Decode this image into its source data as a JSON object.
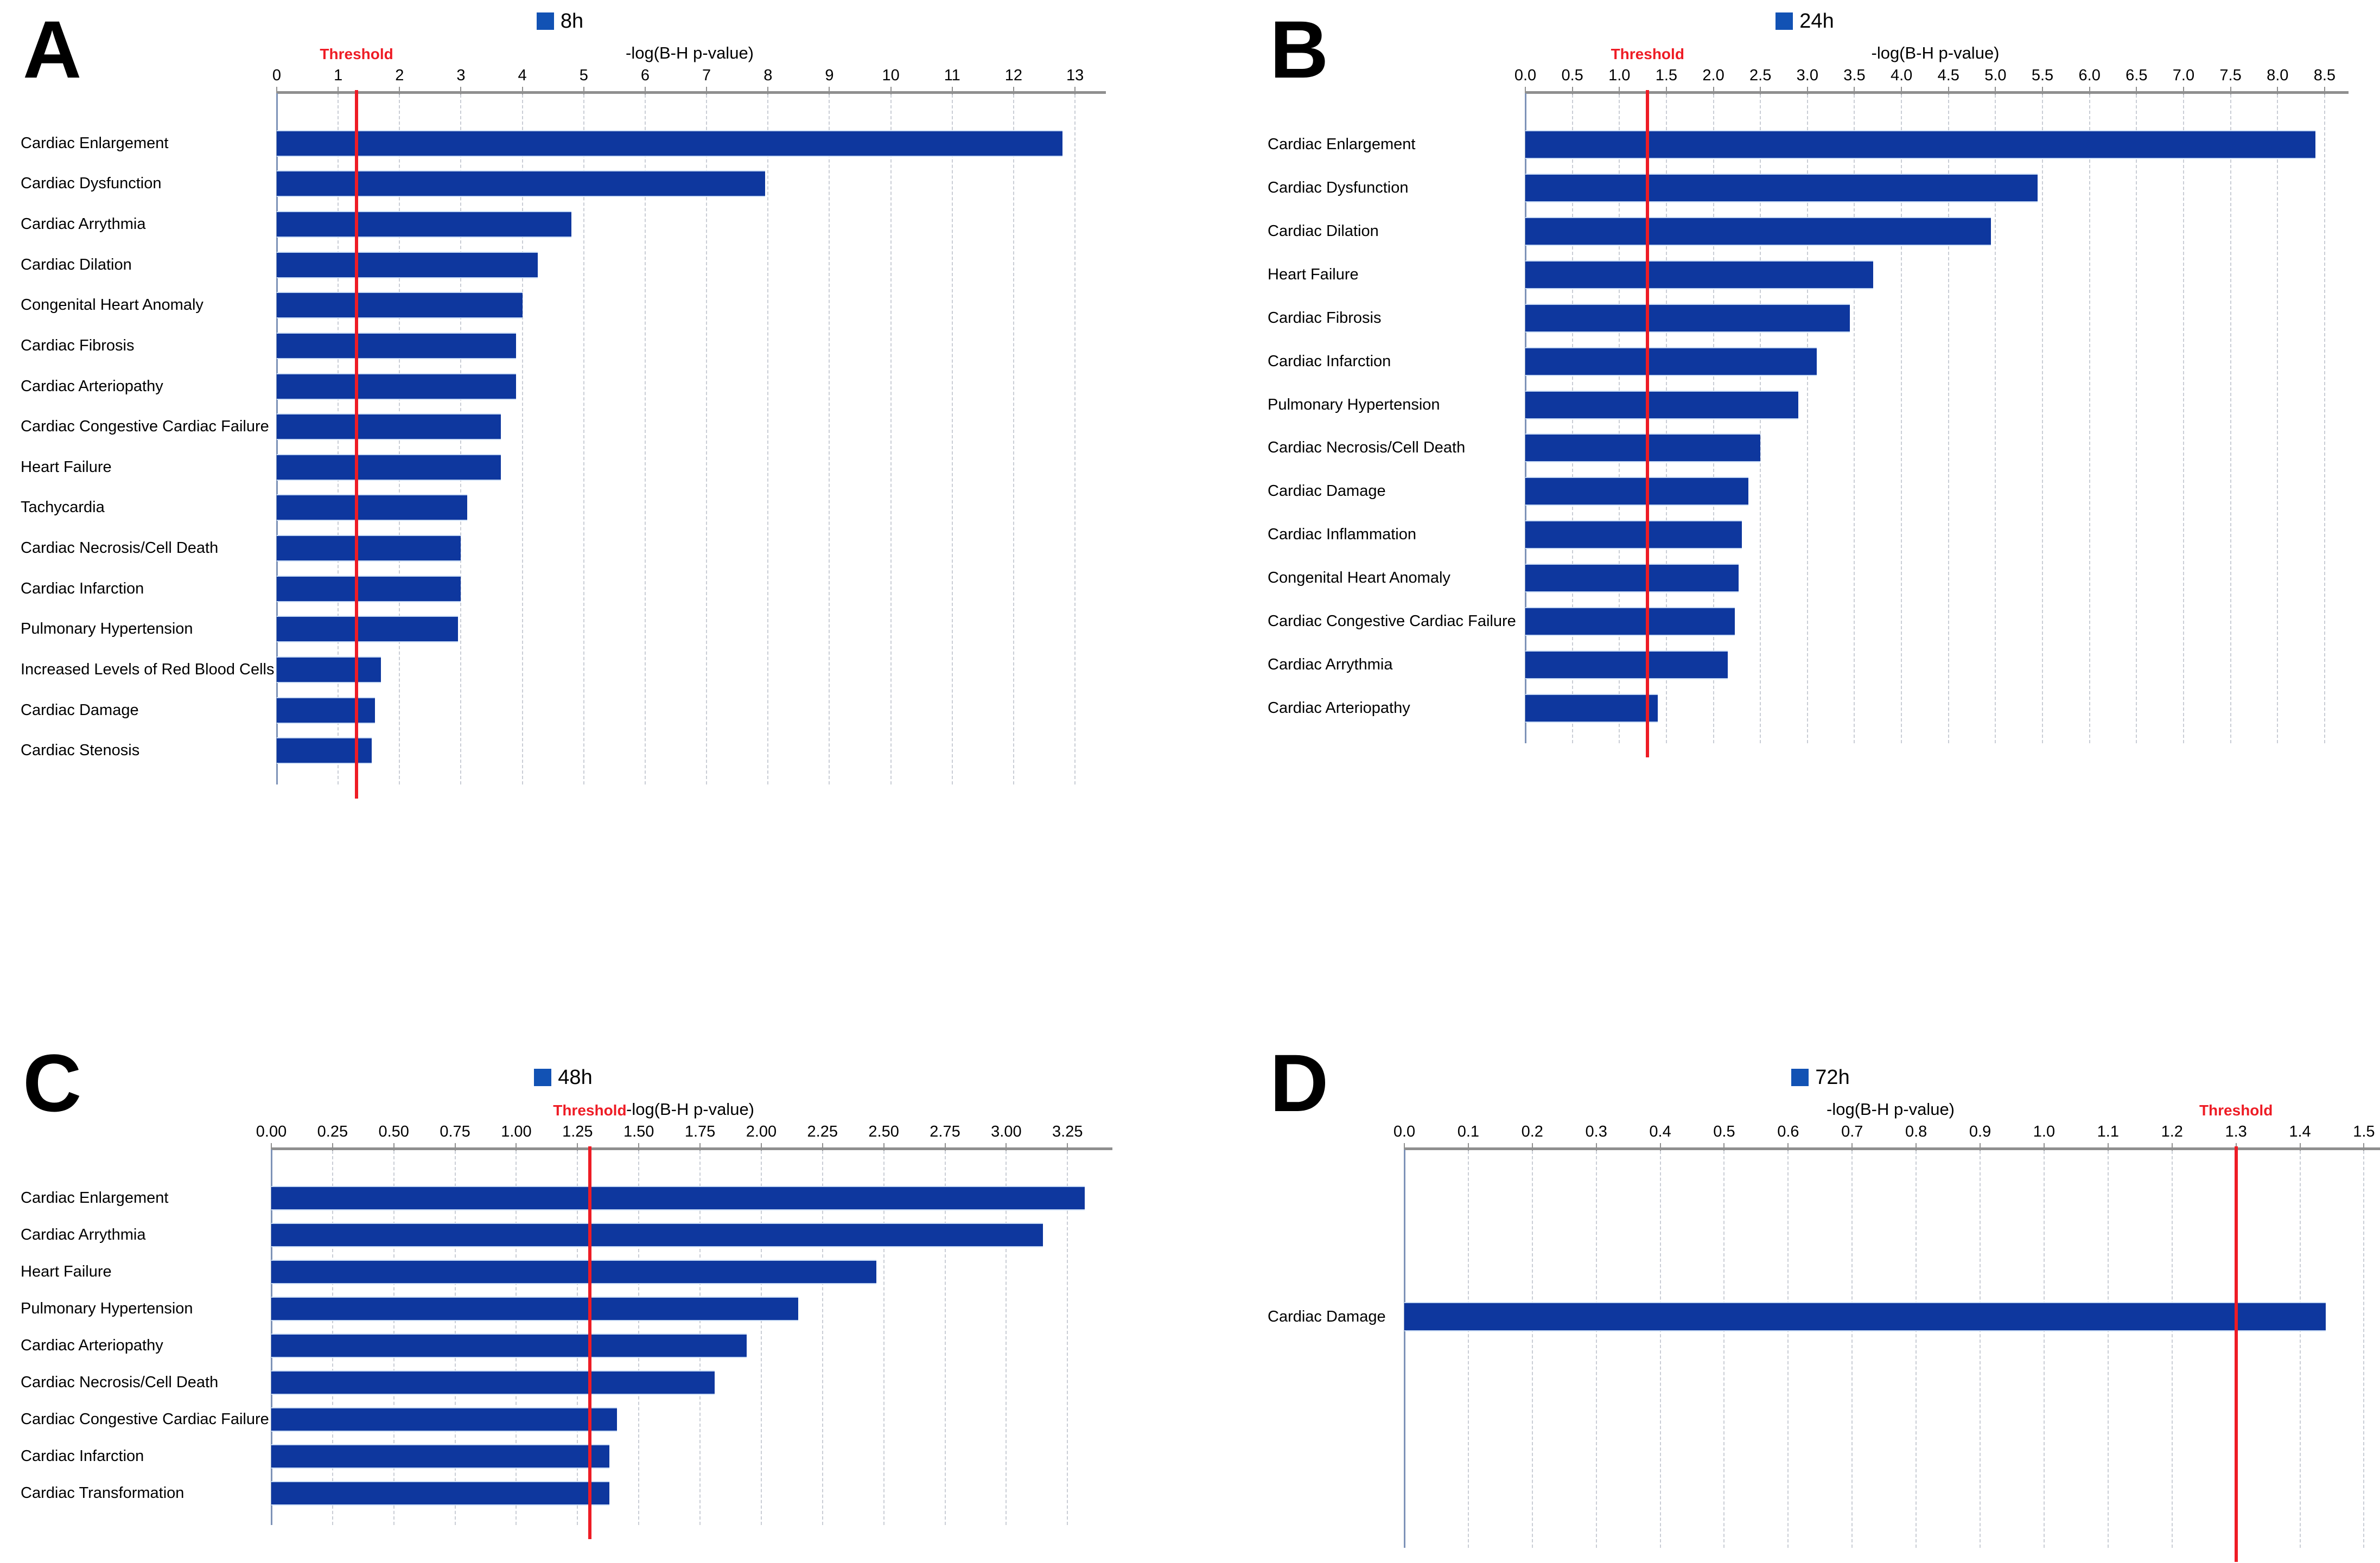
{
  "colors": {
    "bar": "#0e379e",
    "bar_edge": "#cadcf4",
    "legend_swatch": "#1252b4",
    "threshold": "#ee1c25",
    "axis_line": "#8f8f8f",
    "left_axis_line": "#7e93b8",
    "gridline": "#c9cdd5",
    "text": "#000000"
  },
  "chart_data": [
    {
      "type": "bar",
      "panel_letter": "A",
      "legend_label": "8h",
      "axis_title": "-log(B-H p-value)",
      "threshold_label": "Threshold",
      "threshold_value": 1.3,
      "orientation": "horizontal-bars",
      "grid": "vertical-dashed",
      "legend_position": "top-center",
      "xlim": [
        0,
        13.45
      ],
      "ticks": [
        "0",
        "1",
        "2",
        "3",
        "4",
        "5",
        "6",
        "7",
        "8",
        "9",
        "10",
        "11",
        "12",
        "13"
      ],
      "categories": [
        "Cardiac Enlargement",
        "Cardiac Dysfunction",
        "Cardiac Arrythmia",
        "Cardiac Dilation",
        "Congenital Heart Anomaly",
        "Cardiac Fibrosis",
        "Cardiac Arteriopathy",
        "Cardiac Congestive Cardiac Failure",
        "Heart Failure",
        "Tachycardia",
        "Cardiac Necrosis/Cell Death",
        "Cardiac Infarction",
        "Pulmonary Hypertension",
        "Increased Levels of Red Blood Cells",
        "Cardiac Damage",
        "Cardiac Stenosis"
      ],
      "values": [
        12.8,
        7.95,
        4.8,
        4.25,
        4.0,
        3.9,
        3.9,
        3.65,
        3.65,
        3.1,
        3.0,
        3.0,
        2.95,
        1.7,
        1.6,
        1.55
      ]
    },
    {
      "type": "bar",
      "panel_letter": "B",
      "legend_label": "24h",
      "axis_title": "-log(B-H p-value)",
      "threshold_label": "Threshold",
      "threshold_value": 1.3,
      "orientation": "horizontal-bars",
      "grid": "vertical-dashed",
      "legend_position": "top-center",
      "xlim": [
        0,
        8.72
      ],
      "ticks": [
        "0.0",
        "0.5",
        "1.0",
        "1.5",
        "2.0",
        "2.5",
        "3.0",
        "3.5",
        "4.0",
        "4.5",
        "5.0",
        "5.5",
        "6.0",
        "6.5",
        "7.0",
        "7.5",
        "8.0",
        "8.5"
      ],
      "categories": [
        "Cardiac Enlargement",
        "Cardiac Dysfunction",
        "Cardiac Dilation",
        "Heart Failure",
        "Cardiac Fibrosis",
        "Cardiac Infarction",
        "Pulmonary Hypertension",
        "Cardiac Necrosis/Cell Death",
        "Cardiac Damage",
        "Cardiac Inflammation",
        "Congenital Heart Anomaly",
        "Cardiac Congestive Cardiac Failure",
        "Cardiac Arrythmia",
        "Cardiac Arteriopathy"
      ],
      "values": [
        8.4,
        5.45,
        4.95,
        3.7,
        3.45,
        3.1,
        2.9,
        2.5,
        2.37,
        2.3,
        2.27,
        2.23,
        2.15,
        1.41
      ]
    },
    {
      "type": "bar",
      "panel_letter": "C",
      "legend_label": "48h",
      "axis_title": "-log(B-H p-value)",
      "threshold_label": "Threshold",
      "threshold_value": 1.3,
      "orientation": "horizontal-bars",
      "grid": "vertical-dashed",
      "legend_position": "top-center",
      "xlim": [
        0,
        3.42
      ],
      "ticks": [
        "0.00",
        "0.25",
        "0.50",
        "0.75",
        "1.00",
        "1.25",
        "1.50",
        "1.75",
        "2.00",
        "2.25",
        "2.50",
        "2.75",
        "3.00",
        "3.25"
      ],
      "categories": [
        "Cardiac Enlargement",
        "Cardiac Arrythmia",
        "Heart Failure",
        "Pulmonary Hypertension",
        "Cardiac Arteriopathy",
        "Cardiac Necrosis/Cell Death",
        "Cardiac Congestive Cardiac Failure",
        "Cardiac Infarction",
        "Cardiac Transformation"
      ],
      "values": [
        3.32,
        3.15,
        2.47,
        2.15,
        1.94,
        1.81,
        1.41,
        1.38,
        1.38
      ]
    },
    {
      "type": "bar",
      "panel_letter": "D",
      "legend_label": "72h",
      "axis_title": "-log(B-H p-value)",
      "threshold_label": "Threshold",
      "threshold_value": 1.3,
      "orientation": "horizontal-bars",
      "grid": "vertical-dashed",
      "legend_position": "top-center",
      "xlim": [
        0,
        1.52
      ],
      "ticks": [
        "0.0",
        "0.1",
        "0.2",
        "0.3",
        "0.4",
        "0.5",
        "0.6",
        "0.7",
        "0.8",
        "0.9",
        "1.0",
        "1.1",
        "1.2",
        "1.3",
        "1.4",
        "1.5"
      ],
      "categories": [
        "Cardiac Damage"
      ],
      "values": [
        1.44
      ]
    }
  ]
}
